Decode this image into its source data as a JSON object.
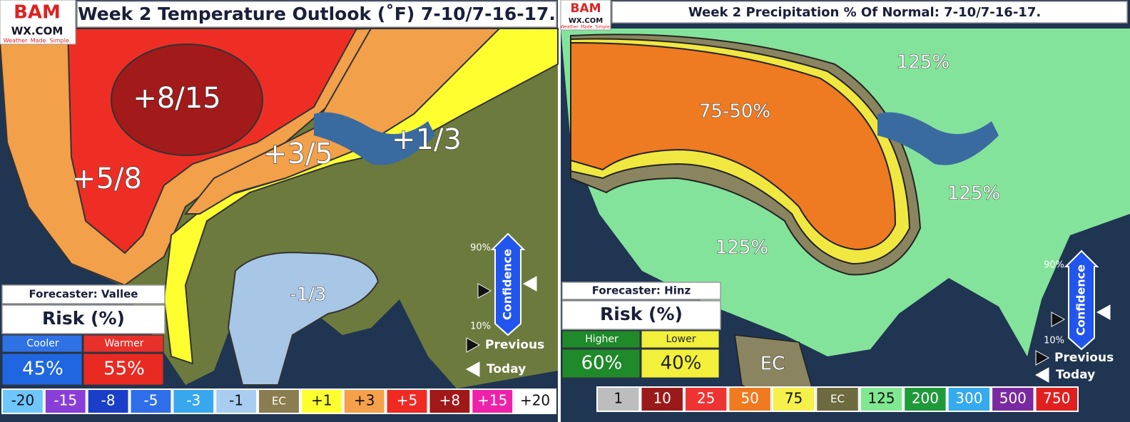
{
  "left": {
    "logo": {
      "brand": "BAM",
      "site": "WX.COM",
      "tagline": "Weather. Made. Simple."
    },
    "title": "Week 2 Temperature Outlook (˚F) 7-10/7-16-17.",
    "regions": [
      "+8/15",
      "+5/8",
      "+3/5",
      "+1/3",
      "-1/3"
    ],
    "forecaster": "Forecaster: Vallee",
    "risk_title": "Risk (%)",
    "risk": [
      {
        "label": "Cooler",
        "value": "45%",
        "color": "#2f72e6",
        "value_color": "#1f66e0"
      },
      {
        "label": "Warmer",
        "value": "55%",
        "color": "#e8302a",
        "value_color": "#e82a22"
      }
    ],
    "confidence": {
      "label": "Confidence",
      "high": "90%",
      "low": "10%"
    },
    "markers": [
      "Previous",
      "Today"
    ],
    "legend": [
      {
        "label": "-20",
        "color": "#6ec6ff"
      },
      {
        "label": "-15",
        "color": "#8a3ed8"
      },
      {
        "label": "-8",
        "color": "#1a3ec8"
      },
      {
        "label": "-5",
        "color": "#2f6ee8"
      },
      {
        "label": "-3",
        "color": "#38a8ee"
      },
      {
        "label": "-1",
        "color": "#a8cdf0"
      },
      {
        "label": "EC",
        "color": "#8a7d4f"
      },
      {
        "label": "+1",
        "color": "#ffff30"
      },
      {
        "label": "+3",
        "color": "#f5a04a"
      },
      {
        "label": "+5",
        "color": "#ee2a22"
      },
      {
        "label": "+8",
        "color": "#a01818"
      },
      {
        "label": "+15",
        "color": "#ee22aa"
      },
      {
        "label": "+20",
        "color": "#ffffff"
      }
    ]
  },
  "right": {
    "logo": {
      "brand": "BAM",
      "site": "WX.COM",
      "tagline": "Weather. Made. Simple."
    },
    "title": "Week 2 Precipitation % Of Normal: 7-10/7-16-17.",
    "regions": [
      "125%",
      "75-50%",
      "125%",
      "125%",
      "EC"
    ],
    "forecaster": "Forecaster: Hinz",
    "risk_title": "Risk (%)",
    "risk": [
      {
        "label": "Higher",
        "value": "60%",
        "color": "#1f8a2a",
        "value_color": "#1f8a2a"
      },
      {
        "label": "Lower",
        "value": "40%",
        "color": "#f2f03a",
        "value_color": "#f2f03a"
      }
    ],
    "confidence": {
      "label": "Confidence",
      "high": "90%",
      "low": "10%"
    },
    "markers": [
      "Previous",
      "Today"
    ],
    "legend": [
      {
        "label": "1",
        "color": "#bdbdbd"
      },
      {
        "label": "10",
        "color": "#9a1a1a"
      },
      {
        "label": "25",
        "color": "#ee3333"
      },
      {
        "label": "50",
        "color": "#f07a20"
      },
      {
        "label": "75",
        "color": "#f5f04a"
      },
      {
        "label": "EC",
        "color": "#6d6a40"
      },
      {
        "label": "125",
        "color": "#80e890"
      },
      {
        "label": "200",
        "color": "#1f9a3a"
      },
      {
        "label": "300",
        "color": "#35aaee"
      },
      {
        "label": "500",
        "color": "#7a2aa0"
      },
      {
        "label": "750",
        "color": "#e02020"
      }
    ]
  }
}
